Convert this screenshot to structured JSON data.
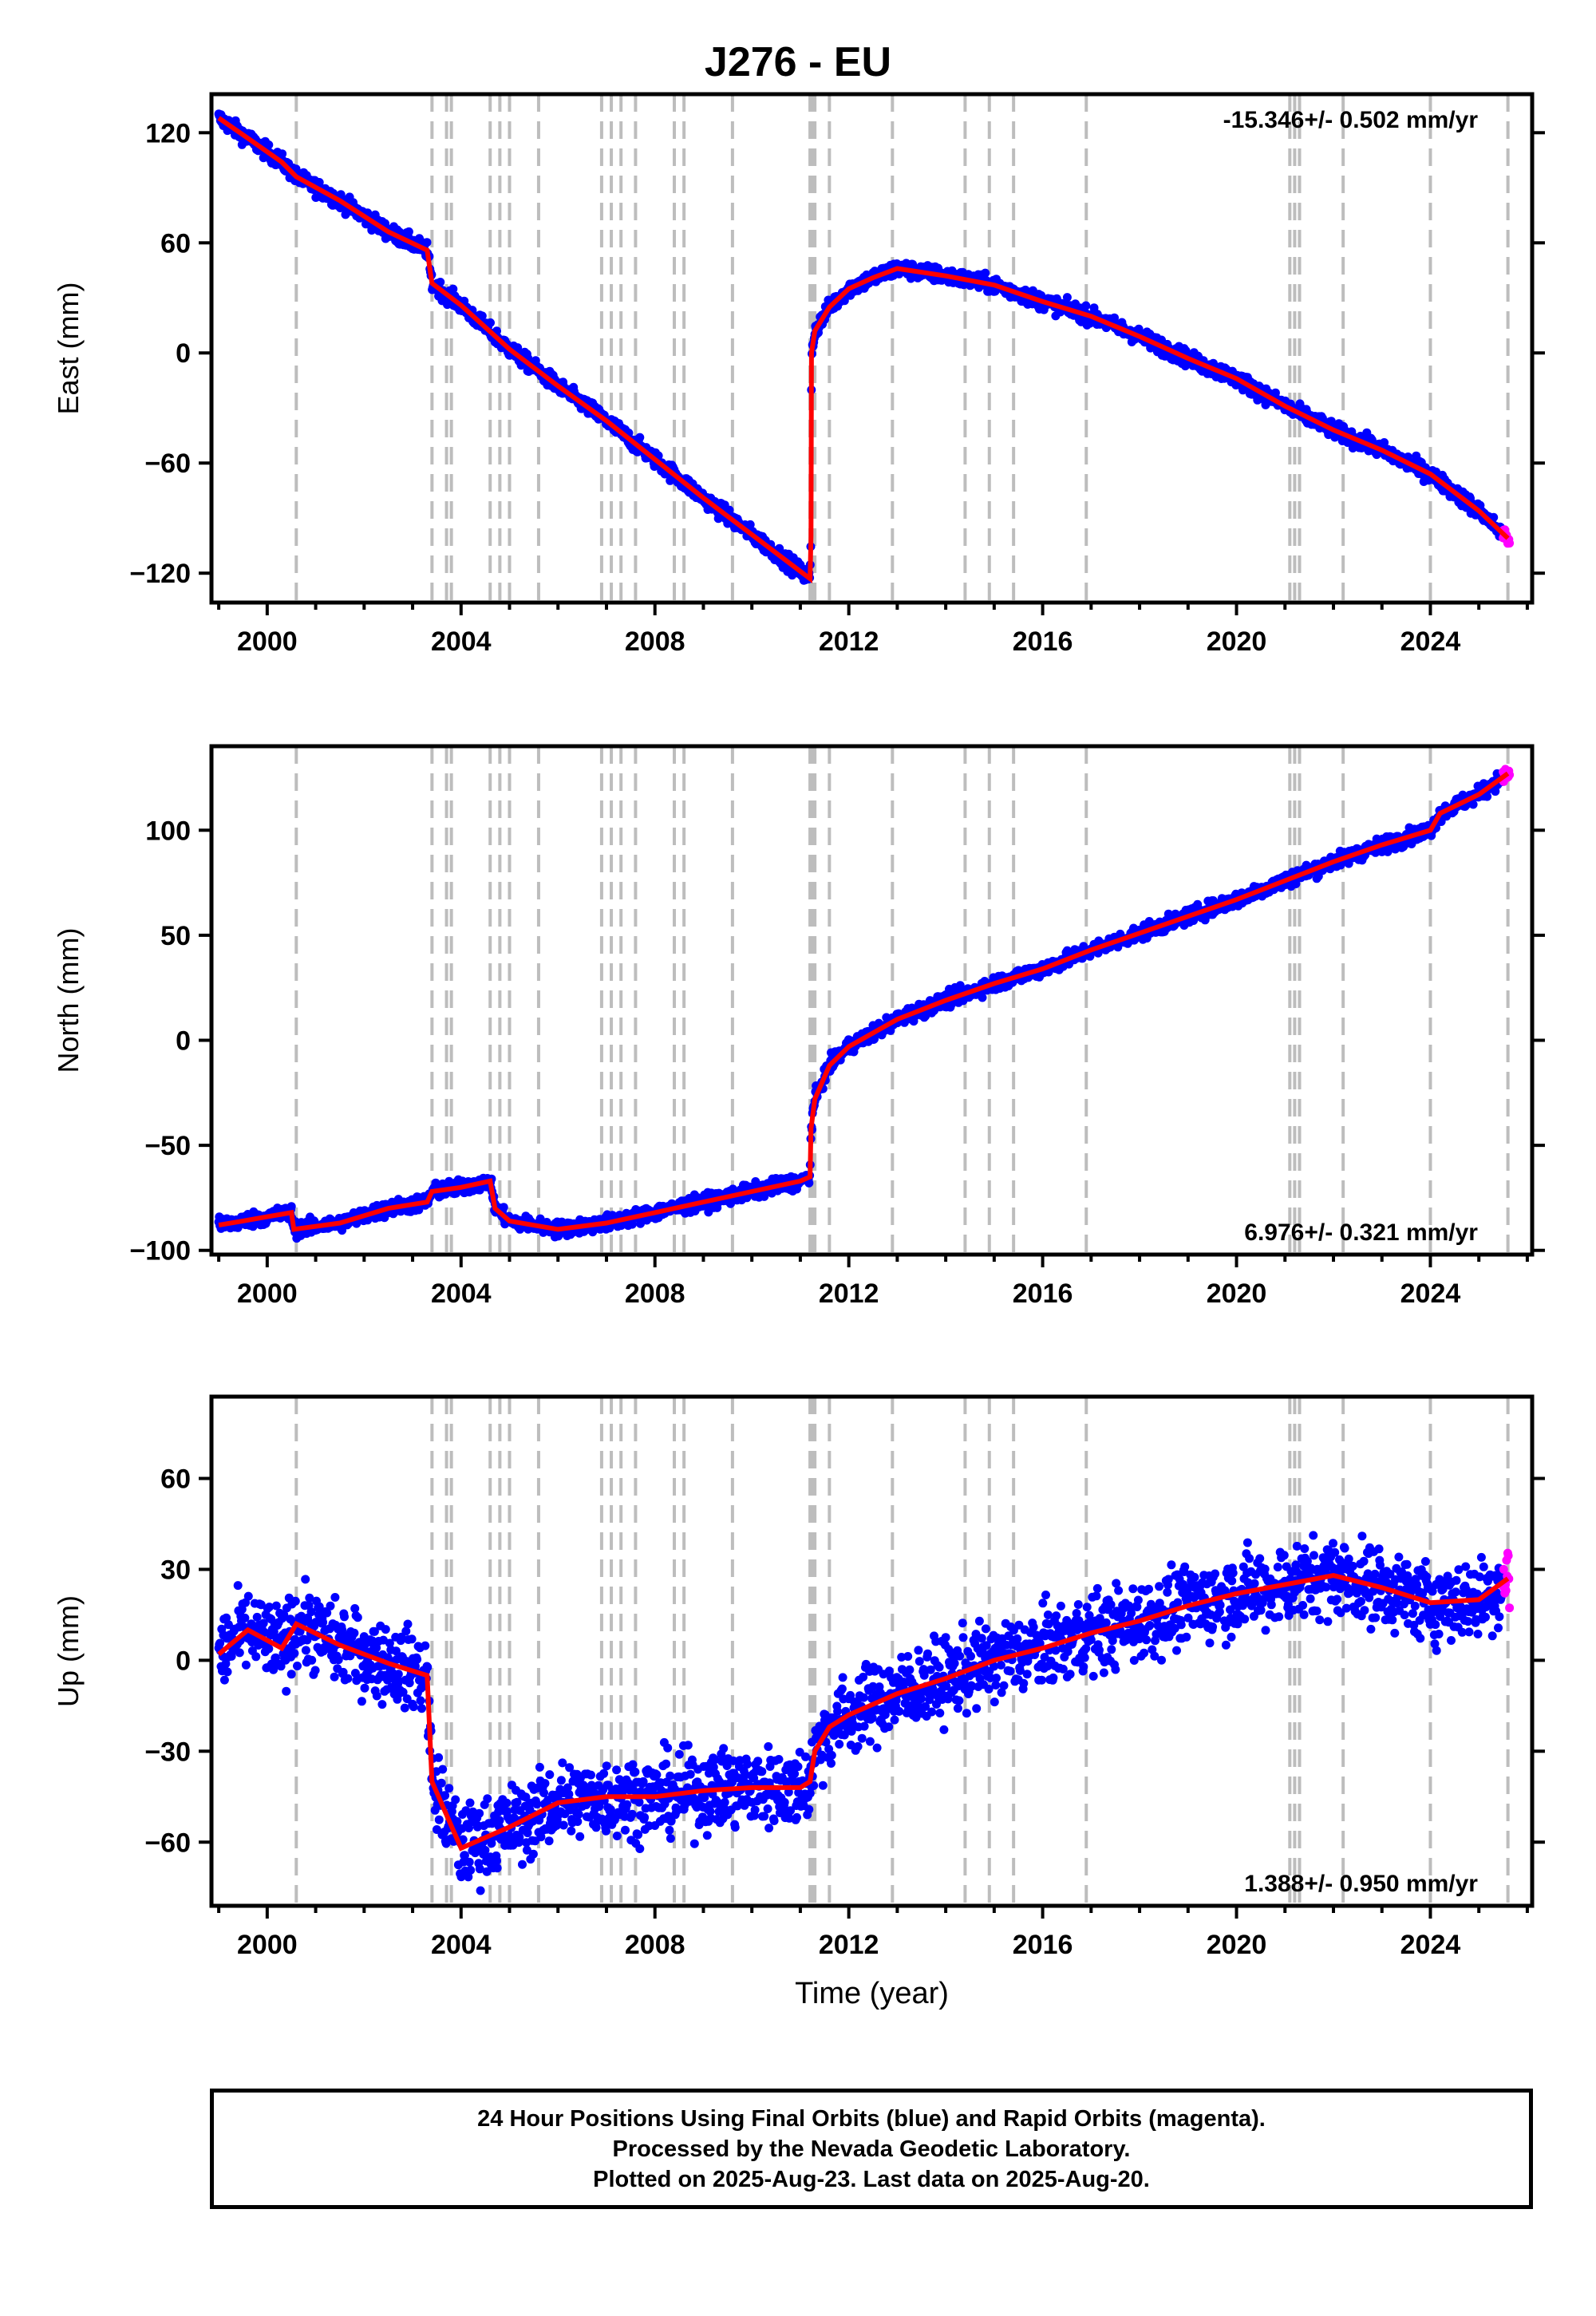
{
  "title": "J276 - EU",
  "chart_data": [
    {
      "type": "scatter",
      "component": "East",
      "ylabel": "East (mm)",
      "xlabel": "",
      "xlim": [
        1998.85,
        2026.1
      ],
      "ylim": [
        -136,
        141
      ],
      "yticks": [
        -120,
        -60,
        0,
        60,
        120
      ],
      "xticks": [
        2000,
        2004,
        2008,
        2012,
        2016,
        2020,
        2024
      ],
      "annotation": "-15.346+/- 0.502 mm/yr",
      "annotation_position": "top-right",
      "trend": [
        [
          1999.0,
          128
        ],
        [
          1999.6,
          117
        ],
        [
          2000.3,
          104
        ],
        [
          2000.6,
          96
        ],
        [
          2001.5,
          83
        ],
        [
          2002.5,
          66
        ],
        [
          2003.3,
          56
        ],
        [
          2003.4,
          38
        ],
        [
          2004.0,
          26
        ],
        [
          2005.0,
          2
        ],
        [
          2006.0,
          -18
        ],
        [
          2007.0,
          -37
        ],
        [
          2008.0,
          -58
        ],
        [
          2009.0,
          -79
        ],
        [
          2010.0,
          -99
        ],
        [
          2011.0,
          -119
        ],
        [
          2011.2,
          -123
        ],
        [
          2011.22,
          -100
        ],
        [
          2011.23,
          0
        ],
        [
          2011.3,
          12
        ],
        [
          2011.6,
          25
        ],
        [
          2012.0,
          35
        ],
        [
          2012.5,
          41
        ],
        [
          2013.0,
          46
        ],
        [
          2014.0,
          42
        ],
        [
          2015.0,
          37
        ],
        [
          2016.0,
          28
        ],
        [
          2017.0,
          20
        ],
        [
          2018.0,
          9
        ],
        [
          2019.0,
          -3
        ],
        [
          2020.0,
          -14
        ],
        [
          2021.0,
          -29
        ],
        [
          2022.0,
          -42
        ],
        [
          2023.0,
          -53
        ],
        [
          2024.0,
          -66
        ],
        [
          2025.0,
          -86
        ],
        [
          2025.6,
          -101
        ]
      ],
      "final_orbits_color": "#0000ff",
      "rapid_orbits_color": "#ff00ff",
      "trend_color": "#ff0000"
    },
    {
      "type": "scatter",
      "component": "North",
      "ylabel": "North (mm)",
      "xlabel": "",
      "xlim": [
        1998.85,
        2026.1
      ],
      "ylim": [
        -102,
        140
      ],
      "yticks": [
        -100,
        -50,
        0,
        50,
        100
      ],
      "xticks": [
        2000,
        2004,
        2008,
        2012,
        2016,
        2020,
        2024
      ],
      "annotation": "6.976+/- 0.321 mm/yr",
      "annotation_position": "bottom-right",
      "trend": [
        [
          1999.0,
          -88
        ],
        [
          1999.5,
          -86
        ],
        [
          2000.0,
          -84
        ],
        [
          2000.5,
          -82
        ],
        [
          2000.55,
          -90
        ],
        [
          2001.5,
          -87
        ],
        [
          2002.5,
          -80
        ],
        [
          2003.3,
          -77
        ],
        [
          2003.4,
          -72
        ],
        [
          2004.0,
          -70
        ],
        [
          2004.6,
          -67
        ],
        [
          2004.7,
          -80
        ],
        [
          2005.0,
          -86
        ],
        [
          2006.0,
          -90
        ],
        [
          2007.0,
          -87
        ],
        [
          2008.0,
          -82
        ],
        [
          2009.0,
          -77
        ],
        [
          2010.0,
          -72
        ],
        [
          2011.0,
          -67
        ],
        [
          2011.2,
          -65
        ],
        [
          2011.22,
          -42
        ],
        [
          2011.3,
          -28
        ],
        [
          2011.6,
          -12
        ],
        [
          2012.0,
          -3
        ],
        [
          2013.0,
          10
        ],
        [
          2014.0,
          19
        ],
        [
          2015.0,
          27
        ],
        [
          2016.0,
          34
        ],
        [
          2017.0,
          43
        ],
        [
          2018.0,
          51
        ],
        [
          2019.0,
          59
        ],
        [
          2020.0,
          67
        ],
        [
          2021.0,
          76
        ],
        [
          2022.0,
          85
        ],
        [
          2023.0,
          93
        ],
        [
          2024.0,
          100
        ],
        [
          2024.2,
          108
        ],
        [
          2025.0,
          117
        ],
        [
          2025.6,
          127
        ]
      ],
      "final_orbits_color": "#0000ff",
      "rapid_orbits_color": "#ff00ff",
      "trend_color": "#ff0000"
    },
    {
      "type": "scatter",
      "component": "Up",
      "ylabel": "Up (mm)",
      "xlabel": "Time (year)",
      "xlim": [
        1998.85,
        2026.1
      ],
      "ylim": [
        -81,
        87
      ],
      "yticks": [
        -60,
        -30,
        0,
        30,
        60
      ],
      "xticks": [
        2000,
        2004,
        2008,
        2012,
        2016,
        2020,
        2024
      ],
      "annotation": "1.388+/- 0.950 mm/yr",
      "annotation_position": "bottom-right",
      "trend": [
        [
          1999.0,
          2
        ],
        [
          1999.6,
          10
        ],
        [
          2000.3,
          4
        ],
        [
          2000.6,
          12
        ],
        [
          2001.5,
          5
        ],
        [
          2002.5,
          -1
        ],
        [
          2003.3,
          -5
        ],
        [
          2003.4,
          -40
        ],
        [
          2004.0,
          -62
        ],
        [
          2005.0,
          -55
        ],
        [
          2006.0,
          -47
        ],
        [
          2007.0,
          -45
        ],
        [
          2008.0,
          -45
        ],
        [
          2009.0,
          -43
        ],
        [
          2010.0,
          -42
        ],
        [
          2011.0,
          -42
        ],
        [
          2011.2,
          -40
        ],
        [
          2011.3,
          -30
        ],
        [
          2011.6,
          -22
        ],
        [
          2012.0,
          -18
        ],
        [
          2013.0,
          -11
        ],
        [
          2014.0,
          -6
        ],
        [
          2015.0,
          0
        ],
        [
          2016.0,
          4
        ],
        [
          2017.0,
          9
        ],
        [
          2018.0,
          13
        ],
        [
          2019.0,
          18
        ],
        [
          2020.0,
          22
        ],
        [
          2021.0,
          25
        ],
        [
          2022.0,
          28
        ],
        [
          2023.0,
          24
        ],
        [
          2024.0,
          19
        ],
        [
          2025.0,
          20
        ],
        [
          2025.6,
          27
        ]
      ],
      "final_orbits_color": "#0000ff",
      "rapid_orbits_color": "#ff00ff",
      "trend_color": "#ff0000"
    }
  ],
  "event_lines": [
    2000.6,
    2003.4,
    2003.7,
    2003.8,
    2004.6,
    2004.8,
    2005.0,
    2005.6,
    2006.9,
    2007.1,
    2007.3,
    2007.6,
    2008.4,
    2008.6,
    2009.6,
    2011.2,
    2011.25,
    2011.3,
    2011.6,
    2012.9,
    2014.4,
    2014.9,
    2015.4,
    2016.9,
    2021.1,
    2021.2,
    2021.3,
    2022.2,
    2024.0,
    2025.6
  ],
  "legend": {
    "line1": "24 Hour Positions Using Final Orbits (blue) and Rapid Orbits (magenta).",
    "line2": "Processed by the Nevada Geodetic Laboratory.",
    "line3": "Plotted on 2025-Aug-23. Last data on 2025-Aug-20."
  }
}
